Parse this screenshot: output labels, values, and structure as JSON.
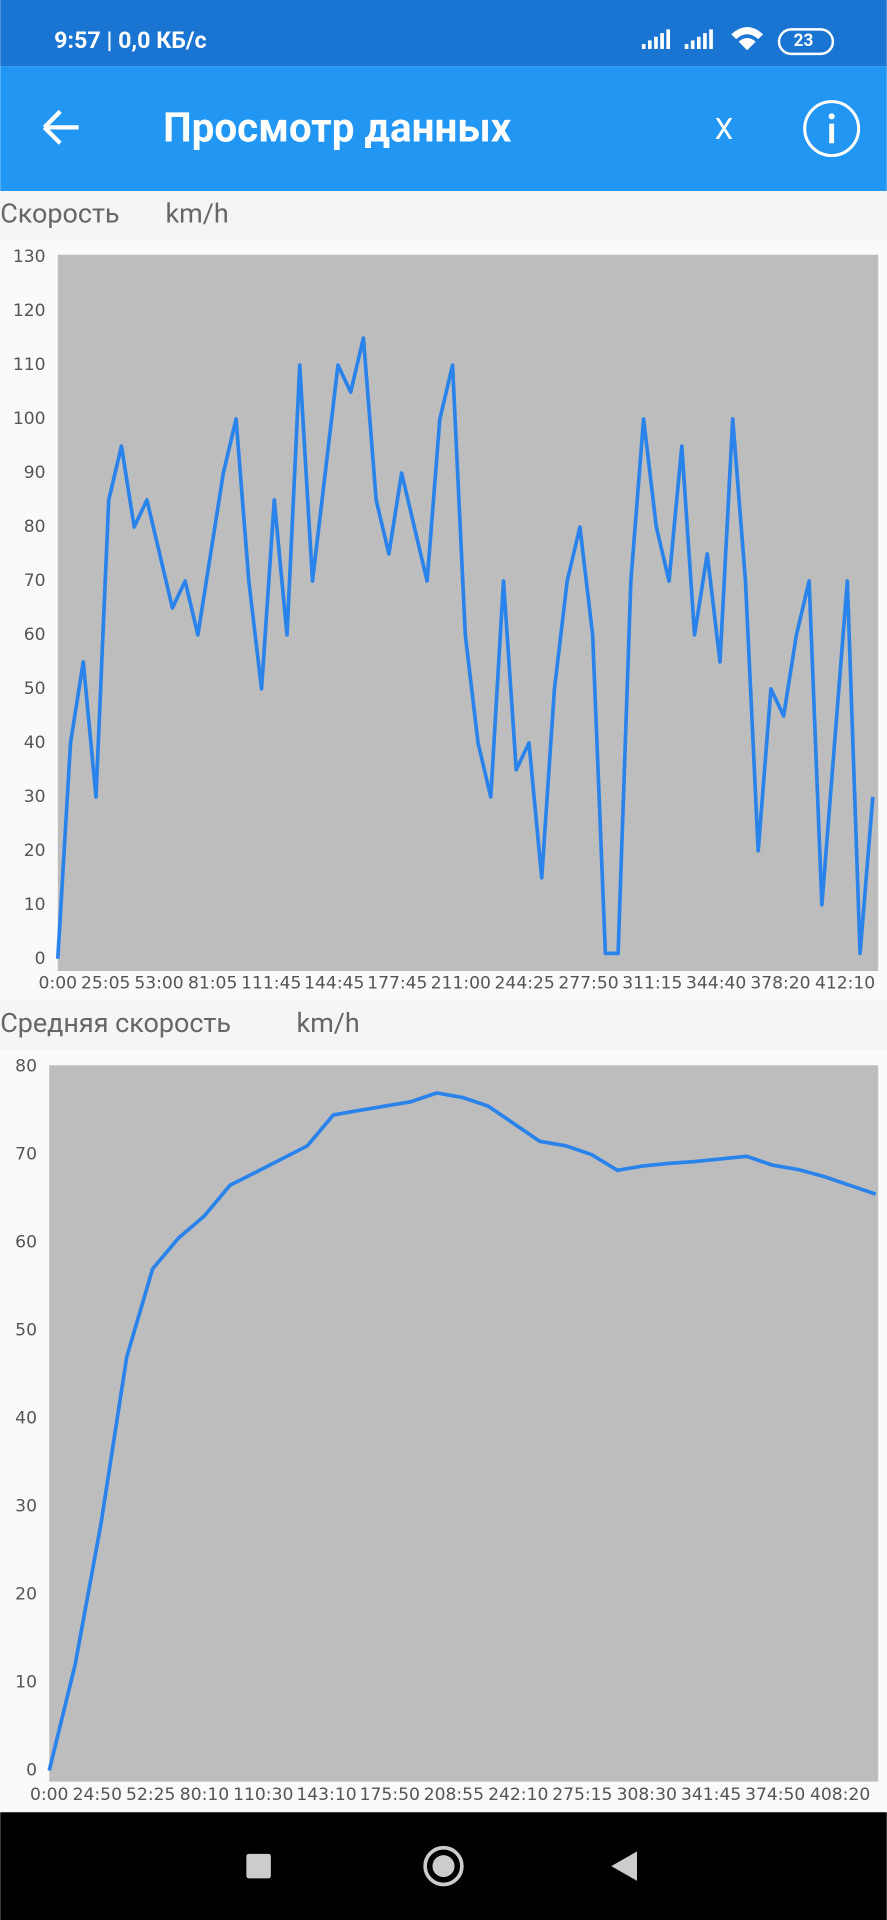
{
  "status_bar": {
    "time": "9:57 | 0,0 КБ/с",
    "battery": "23"
  },
  "app_bar": {
    "title": "Просмотр данных",
    "close": "X"
  },
  "chart_data": [
    {
      "type": "line",
      "title": "Скорость",
      "unit": "km/h",
      "color": "#2a83ea",
      "grid": false,
      "x": [
        0,
        400,
        800,
        1200,
        1600,
        2000,
        2400,
        2800,
        3200,
        3600,
        4000,
        4400,
        4800,
        5200,
        5600,
        6000,
        6400,
        6800,
        7200,
        7600,
        8000,
        8400,
        8800,
        9200,
        9600,
        10000,
        10400,
        10800,
        11200,
        11600,
        12000,
        12400,
        12800,
        13200,
        13600,
        14000,
        14400,
        14800,
        15200,
        15600,
        16000,
        16400,
        16800,
        17200,
        17600,
        18000,
        18400,
        18800,
        19200,
        19600,
        20000,
        20400,
        20800,
        21200,
        21600,
        22000,
        22400,
        22800,
        23200,
        23600,
        24000,
        24400,
        24800,
        25200,
        25600
      ],
      "values": [
        0,
        40,
        55,
        30,
        85,
        95,
        80,
        85,
        75,
        65,
        70,
        60,
        75,
        90,
        100,
        70,
        50,
        85,
        60,
        110,
        70,
        90,
        110,
        105,
        115,
        85,
        75,
        90,
        80,
        70,
        100,
        110,
        60,
        40,
        30,
        70,
        35,
        40,
        15,
        50,
        70,
        80,
        60,
        1,
        1,
        70,
        100,
        80,
        70,
        95,
        60,
        75,
        55,
        100,
        70,
        20,
        50,
        45,
        60,
        70,
        10,
        40,
        70,
        1,
        30
      ],
      "xlim": [
        0,
        25770
      ],
      "ylim": [
        0,
        130
      ],
      "xticks": [
        {
          "value": 0,
          "label": "0:00"
        },
        {
          "value": 1505,
          "label": "25:05"
        },
        {
          "value": 3180,
          "label": "53:00"
        },
        {
          "value": 4865,
          "label": "81:05"
        },
        {
          "value": 6705,
          "label": "111:45"
        },
        {
          "value": 8685,
          "label": "144:45"
        },
        {
          "value": 10665,
          "label": "177:45"
        },
        {
          "value": 12660,
          "label": "211:00"
        },
        {
          "value": 14665,
          "label": "244:25"
        },
        {
          "value": 16670,
          "label": "277:50"
        },
        {
          "value": 18675,
          "label": "311:15"
        },
        {
          "value": 20680,
          "label": "344:40"
        },
        {
          "value": 22700,
          "label": "378:20"
        },
        {
          "value": 24730,
          "label": "412:10"
        }
      ],
      "yticks": [
        0,
        10,
        20,
        30,
        40,
        50,
        60,
        70,
        80,
        90,
        100,
        110,
        120,
        130
      ]
    },
    {
      "type": "line",
      "title": "Средняя скорость",
      "unit": "km/h",
      "color": "#2a83ea",
      "grid": false,
      "x": [
        0,
        800,
        1600,
        2400,
        3200,
        4000,
        4800,
        5600,
        6400,
        7200,
        8000,
        8800,
        9600,
        10400,
        11200,
        12000,
        12800,
        13600,
        14400,
        15200,
        16000,
        16800,
        17600,
        18400,
        19200,
        20000,
        20800,
        21600,
        22400,
        23200,
        24000,
        24800,
        25600
      ],
      "values": [
        0,
        12,
        28,
        47,
        57,
        60.5,
        63,
        66.5,
        68,
        69.5,
        71,
        74.5,
        75,
        75.5,
        76,
        77,
        76.5,
        75.5,
        73.5,
        71.5,
        71,
        70,
        68.2,
        68.7,
        69,
        69.2,
        69.5,
        69.8,
        68.8,
        68.3,
        67.5,
        66.5,
        65.5
      ],
      "xlim": [
        0,
        25680
      ],
      "ylim": [
        0,
        80
      ],
      "xticks": [
        {
          "value": 0,
          "label": "0:00"
        },
        {
          "value": 1490,
          "label": "24:50"
        },
        {
          "value": 3145,
          "label": "52:25"
        },
        {
          "value": 4810,
          "label": "80:10"
        },
        {
          "value": 6630,
          "label": "110:30"
        },
        {
          "value": 8590,
          "label": "143:10"
        },
        {
          "value": 10550,
          "label": "175:50"
        },
        {
          "value": 12535,
          "label": "208:55"
        },
        {
          "value": 14530,
          "label": "242:10"
        },
        {
          "value": 16515,
          "label": "275:15"
        },
        {
          "value": 18510,
          "label": "308:30"
        },
        {
          "value": 20505,
          "label": "341:45"
        },
        {
          "value": 22490,
          "label": "374:50"
        },
        {
          "value": 24500,
          "label": "408:20"
        }
      ],
      "yticks": [
        0,
        10,
        20,
        30,
        40,
        50,
        60,
        70,
        80
      ]
    }
  ]
}
